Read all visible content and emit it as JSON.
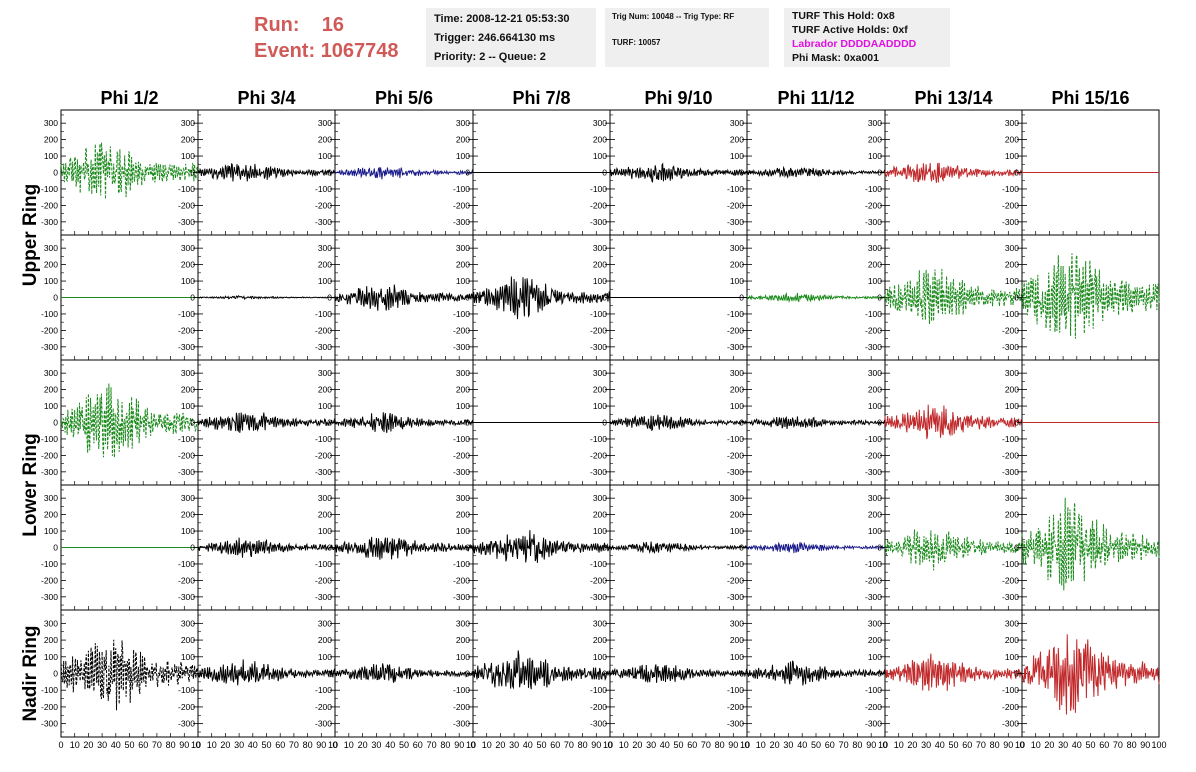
{
  "header": {
    "run_label": "Run:",
    "run_value": "16",
    "event_label": "Event:",
    "event_value": "1067748",
    "time": "Time: 2008-12-21 05:53:30",
    "trigger": "Trigger: 246.664130 ms",
    "priority": "Priority: 2 -- Queue: 2",
    "trig_num": "Trig Num: 10048 -- Trig Type: RF",
    "turf": "TURF: 10057",
    "turf_this_hold": "TURF This Hold: 0x8",
    "turf_active_holds": "TURF Active Holds: 0xf",
    "labrador": "Labrador DDDDAADDDD",
    "phi_mask": "Phi Mask: 0xa001",
    "labrador_color": "#e010e0",
    "run_color": "#d05a58"
  },
  "chart_data": {
    "type": "line",
    "description_of_layout": "grid",
    "columns": [
      "Phi 1/2",
      "Phi 3/4",
      "Phi 5/6",
      "Phi 7/8",
      "Phi 9/10",
      "Phi 11/12",
      "Phi 13/14",
      "Phi 15/16"
    ],
    "row_groups": [
      {
        "label": "Upper Ring",
        "rows": [
          0,
          1
        ]
      },
      {
        "label": "Lower Ring",
        "rows": [
          2,
          3
        ]
      },
      {
        "label": "Nadir Ring",
        "rows": [
          4
        ]
      }
    ],
    "xlim": [
      0,
      100
    ],
    "ylim": [
      -380,
      380
    ],
    "yticks": [
      -300,
      -200,
      -100,
      0,
      100,
      200,
      300
    ],
    "xticks": [
      0,
      10,
      20,
      30,
      40,
      50,
      60,
      70,
      80,
      90,
      100
    ],
    "colors": {
      "black": "#000000",
      "green": "#1a8a1a",
      "blue": "#1a1a8a",
      "red": "#c0282a"
    },
    "panels": [
      [
        {
          "color": "green",
          "dashed": true,
          "amp": 180,
          "flat": false
        },
        {
          "color": "black",
          "dashed": false,
          "amp": 60,
          "flat": false
        },
        {
          "color": "blue",
          "dashed": false,
          "amp": 40,
          "flat": false
        },
        {
          "color": "black",
          "dashed": false,
          "amp": 0,
          "flat": true
        },
        {
          "color": "black",
          "dashed": false,
          "amp": 55,
          "flat": false
        },
        {
          "color": "black",
          "dashed": false,
          "amp": 35,
          "flat": false
        },
        {
          "color": "red",
          "dashed": false,
          "amp": 70,
          "flat": false
        },
        {
          "color": "red",
          "dashed": false,
          "amp": 0,
          "flat": true
        }
      ],
      [
        {
          "color": "green",
          "dashed": false,
          "amp": 0,
          "flat": true
        },
        {
          "color": "black",
          "dashed": false,
          "amp": 10,
          "flat": false
        },
        {
          "color": "black",
          "dashed": false,
          "amp": 80,
          "flat": false
        },
        {
          "color": "black",
          "dashed": false,
          "amp": 120,
          "flat": false
        },
        {
          "color": "black",
          "dashed": false,
          "amp": 0,
          "flat": true
        },
        {
          "color": "green",
          "dashed": false,
          "amp": 25,
          "flat": false
        },
        {
          "color": "green",
          "dashed": true,
          "amp": 180,
          "flat": false
        },
        {
          "color": "green",
          "dashed": true,
          "amp": 300,
          "flat": false
        }
      ],
      [
        {
          "color": "green",
          "dashed": true,
          "amp": 230,
          "flat": false
        },
        {
          "color": "black",
          "dashed": false,
          "amp": 70,
          "flat": false
        },
        {
          "color": "black",
          "dashed": false,
          "amp": 60,
          "flat": false
        },
        {
          "color": "black",
          "dashed": false,
          "amp": 0,
          "flat": true
        },
        {
          "color": "black",
          "dashed": false,
          "amp": 50,
          "flat": false
        },
        {
          "color": "black",
          "dashed": false,
          "amp": 40,
          "flat": false
        },
        {
          "color": "red",
          "dashed": false,
          "amp": 110,
          "flat": false
        },
        {
          "color": "red",
          "dashed": false,
          "amp": 0,
          "flat": true
        }
      ],
      [
        {
          "color": "green",
          "dashed": false,
          "amp": 0,
          "flat": true
        },
        {
          "color": "black",
          "dashed": false,
          "amp": 60,
          "flat": false
        },
        {
          "color": "black",
          "dashed": false,
          "amp": 80,
          "flat": false
        },
        {
          "color": "black",
          "dashed": false,
          "amp": 100,
          "flat": false
        },
        {
          "color": "black",
          "dashed": false,
          "amp": 35,
          "flat": false
        },
        {
          "color": "blue",
          "dashed": false,
          "amp": 30,
          "flat": false
        },
        {
          "color": "green",
          "dashed": true,
          "amp": 130,
          "flat": false
        },
        {
          "color": "green",
          "dashed": true,
          "amp": 280,
          "flat": false
        }
      ],
      [
        {
          "color": "black",
          "dashed": true,
          "amp": 230,
          "flat": false
        },
        {
          "color": "black",
          "dashed": false,
          "amp": 80,
          "flat": false
        },
        {
          "color": "black",
          "dashed": false,
          "amp": 60,
          "flat": false
        },
        {
          "color": "black",
          "dashed": false,
          "amp": 130,
          "flat": false
        },
        {
          "color": "black",
          "dashed": false,
          "amp": 60,
          "flat": false
        },
        {
          "color": "black",
          "dashed": false,
          "amp": 70,
          "flat": false
        },
        {
          "color": "red",
          "dashed": false,
          "amp": 110,
          "flat": false
        },
        {
          "color": "red",
          "dashed": false,
          "amp": 230,
          "flat": false
        }
      ]
    ]
  }
}
